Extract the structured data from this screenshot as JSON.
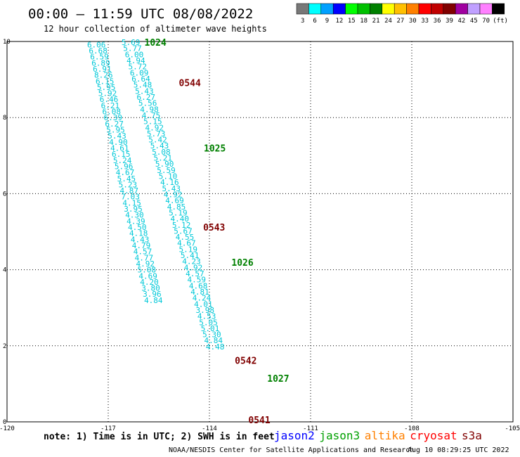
{
  "header": {
    "title": "00:00 – 11:59 UTC 08/08/2022",
    "subtitle": "12 hour collection of altimeter wave heights"
  },
  "colorbar": {
    "labels": [
      "3",
      "6",
      "9",
      "12",
      "15",
      "18",
      "21",
      "24",
      "27",
      "30",
      "33",
      "36",
      "39",
      "42",
      "45",
      "70",
      "(ft)"
    ],
    "colors": [
      "#787878",
      "#00ffff",
      "#00a0ff",
      "#0000ff",
      "#00ff00",
      "#00c000",
      "#008000",
      "#ffff00",
      "#ffc000",
      "#ff8000",
      "#ff0000",
      "#c00000",
      "#800000",
      "#a000a0",
      "#c0a0ff",
      "#ff80ff",
      "#000000"
    ]
  },
  "footer": {
    "note": "note: 1) Time is in UTC; 2) SWH is in feet",
    "legend": [
      {
        "name": "jason2",
        "color": "#0000ff"
      },
      {
        "name": "jason3",
        "color": "#00a000"
      },
      {
        "name": "altika",
        "color": "#ff8000"
      },
      {
        "name": "cryosat",
        "color": "#ff0000"
      },
      {
        "name": "s3a",
        "color": "#800000"
      }
    ],
    "credit": "NOAA/NESDIS Center for Satellite Applications and Research",
    "timestamp": "Aug 10 08:29:25 UTC 2022"
  },
  "chart_data": {
    "type": "scatter",
    "xlim": [
      -120,
      -105
    ],
    "ylim": [
      0,
      10
    ],
    "x_ticks": [
      "-120",
      "-117",
      "-114",
      "-111",
      "-108",
      "-105"
    ],
    "y_ticks": [
      "0",
      "2",
      "4",
      "6",
      "8",
      "10"
    ],
    "grid": true,
    "swh_color": "#00c8d8",
    "series": [
      {
        "points": [
          [
            -117.35,
            9.92,
            "6.06"
          ],
          [
            -117.3,
            9.76,
            "6.68"
          ],
          [
            -117.26,
            9.6,
            "6.59"
          ],
          [
            -117.22,
            9.44,
            "6.89"
          ],
          [
            -117.18,
            9.28,
            "6.91"
          ],
          [
            -117.14,
            9.12,
            "8.26"
          ],
          [
            -117.1,
            8.96,
            "6.15"
          ],
          [
            -117.06,
            8.8,
            "5.95"
          ],
          [
            -117.02,
            8.64,
            "5.92"
          ],
          [
            -116.98,
            8.48,
            "6.46"
          ],
          [
            -116.94,
            8.32,
            "6.21"
          ],
          [
            -116.9,
            8.16,
            "6.08"
          ],
          [
            -116.86,
            8.0,
            "6.39"
          ],
          [
            -116.82,
            7.84,
            "6.27"
          ],
          [
            -116.78,
            7.68,
            "5.95"
          ],
          [
            -116.74,
            7.52,
            "5.43"
          ],
          [
            -116.7,
            7.36,
            "4.90"
          ],
          [
            -116.66,
            7.2,
            "4.61"
          ],
          [
            -116.62,
            7.04,
            "6.15"
          ],
          [
            -116.58,
            6.88,
            "5.24"
          ],
          [
            -116.54,
            6.72,
            "5.96"
          ],
          [
            -116.5,
            6.56,
            "4.67"
          ],
          [
            -116.46,
            6.4,
            "5.45"
          ],
          [
            -116.42,
            6.24,
            "5.23"
          ],
          [
            -116.38,
            6.08,
            "4.87"
          ],
          [
            -116.34,
            5.92,
            "7.03"
          ],
          [
            -116.3,
            5.76,
            "4.15"
          ],
          [
            -116.26,
            5.6,
            "3.95"
          ],
          [
            -116.22,
            5.44,
            "4.30"
          ],
          [
            -116.18,
            5.28,
            "4.39"
          ],
          [
            -116.14,
            5.12,
            "4.50"
          ],
          [
            -116.1,
            4.96,
            "4.18"
          ],
          [
            -116.06,
            4.8,
            "4.43"
          ],
          [
            -116.02,
            4.64,
            "4.79"
          ],
          [
            -115.98,
            4.48,
            "4.57"
          ],
          [
            -115.94,
            4.32,
            "4.77"
          ],
          [
            -115.9,
            4.16,
            "4.92"
          ],
          [
            -115.86,
            4.0,
            "5.08"
          ],
          [
            -115.82,
            3.84,
            "4.69"
          ],
          [
            -115.78,
            3.68,
            "4.20"
          ],
          [
            -115.74,
            3.52,
            "3.80"
          ],
          [
            -115.7,
            3.36,
            "3.96"
          ],
          [
            -115.66,
            3.2,
            "4.84"
          ]
        ],
        "times": [
          {
            "text": "0544",
            "x": -114.58,
            "y": 8.92
          },
          {
            "text": "0543",
            "x": -113.86,
            "y": 5.12
          },
          {
            "text": "0542",
            "x": -112.92,
            "y": 1.62
          },
          {
            "text": "0541",
            "x": -112.52,
            "y": 0.06
          }
        ],
        "time_color": "#800000"
      },
      {
        "points": [
          [
            -116.33,
            9.98,
            "5.69"
          ],
          [
            -116.28,
            9.82,
            "5.77"
          ],
          [
            -116.23,
            9.66,
            "6.00"
          ],
          [
            -116.18,
            9.5,
            "4.94"
          ],
          [
            -116.13,
            9.34,
            "5.72"
          ],
          [
            -116.08,
            9.18,
            "6.09"
          ],
          [
            -116.03,
            9.02,
            "6.64"
          ],
          [
            -115.98,
            8.86,
            "5.48"
          ],
          [
            -115.93,
            8.7,
            "5.43"
          ],
          [
            -115.88,
            8.54,
            "6.27"
          ],
          [
            -115.83,
            8.38,
            "5.56"
          ],
          [
            -115.78,
            8.22,
            "4.98"
          ],
          [
            -115.73,
            8.06,
            "4.75"
          ],
          [
            -115.68,
            7.9,
            "5.15"
          ],
          [
            -115.63,
            7.74,
            "4.92"
          ],
          [
            -115.58,
            7.58,
            "5.73"
          ],
          [
            -115.53,
            7.42,
            "5.42"
          ],
          [
            -115.48,
            7.26,
            "5.43"
          ],
          [
            -115.43,
            7.1,
            "5.08"
          ],
          [
            -115.38,
            6.94,
            "5.21"
          ],
          [
            -115.33,
            6.78,
            "5.90"
          ],
          [
            -115.28,
            6.62,
            "5.59"
          ],
          [
            -115.23,
            6.46,
            "5.10"
          ],
          [
            -115.18,
            6.3,
            "4.16"
          ],
          [
            -115.13,
            6.14,
            "5.43"
          ],
          [
            -115.08,
            5.98,
            "4.92"
          ],
          [
            -115.03,
            5.82,
            "4.69"
          ],
          [
            -114.98,
            5.66,
            "4.85"
          ],
          [
            -114.93,
            5.5,
            "5.19"
          ],
          [
            -114.88,
            5.34,
            "4.40"
          ],
          [
            -114.83,
            5.18,
            "5.12"
          ],
          [
            -114.78,
            5.02,
            "5.67"
          ],
          [
            -114.73,
            4.86,
            "4.55"
          ],
          [
            -114.68,
            4.7,
            "4.67"
          ],
          [
            -114.63,
            4.54,
            "5.19"
          ],
          [
            -114.58,
            4.38,
            "5.41"
          ],
          [
            -114.53,
            4.22,
            "4.23"
          ],
          [
            -114.48,
            4.06,
            "4.92"
          ],
          [
            -114.43,
            3.9,
            "4.57"
          ],
          [
            -114.38,
            3.74,
            "4.59"
          ],
          [
            -114.33,
            3.58,
            "4.68"
          ],
          [
            -114.28,
            3.42,
            "4.81"
          ],
          [
            -114.23,
            3.26,
            "4.24"
          ],
          [
            -114.18,
            3.1,
            "4.01"
          ],
          [
            -114.13,
            2.94,
            "3.98"
          ],
          [
            -114.08,
            2.78,
            "4.53"
          ],
          [
            -114.03,
            2.62,
            "5.05"
          ],
          [
            -113.98,
            2.46,
            "5.01"
          ],
          [
            -113.93,
            2.3,
            "5.30"
          ],
          [
            -113.88,
            2.14,
            "4.84"
          ],
          [
            -113.83,
            1.98,
            "4.48"
          ]
        ],
        "times": [
          {
            "text": "1024",
            "x": -115.6,
            "y": 9.98
          },
          {
            "text": "1025",
            "x": -113.84,
            "y": 7.2
          },
          {
            "text": "1026",
            "x": -113.02,
            "y": 4.2
          },
          {
            "text": "1027",
            "x": -111.96,
            "y": 1.15
          }
        ],
        "time_color": "#008000"
      }
    ]
  }
}
